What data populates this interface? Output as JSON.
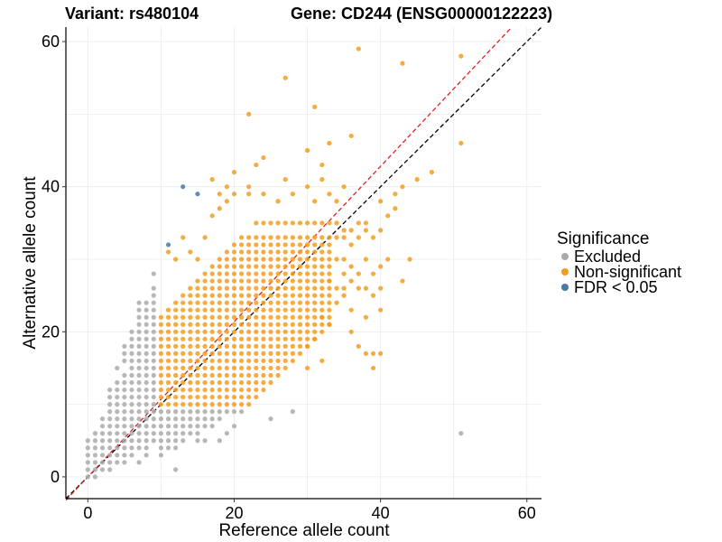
{
  "chart_data": {
    "type": "scatter",
    "title_left": "Variant: rs480104",
    "title_right": "Gene: CD244 (ENSG00000122223)",
    "xlabel": "Reference allele count",
    "ylabel": "Alternative allele count",
    "xlim": [
      -3,
      62
    ],
    "ylim": [
      -3,
      62
    ],
    "x_ticks": [
      0,
      20,
      40,
      60
    ],
    "y_ticks": [
      0,
      20,
      40,
      60
    ],
    "grid": true,
    "legend_position": "right",
    "legend": {
      "title": "Significance",
      "entries": [
        {
          "label": "Excluded",
          "color": "#aaaaaa"
        },
        {
          "label": "Non-significant",
          "color": "#f39c1e"
        },
        {
          "label": "FDR < 0.05",
          "color": "#4878a8"
        }
      ]
    },
    "reference_lines": [
      {
        "name": "identity",
        "slope": 1.0,
        "intercept": 0,
        "color": "#000000",
        "dash": true
      },
      {
        "name": "fitted",
        "slope": 1.07,
        "intercept": 0,
        "color": "#e02020",
        "dash": true
      }
    ],
    "series": [
      {
        "name": "Excluded",
        "color": "#aaaaaa",
        "points": [
          [
            0,
            0
          ],
          [
            0,
            1
          ],
          [
            0,
            2
          ],
          [
            0,
            3
          ],
          [
            0,
            4
          ],
          [
            0,
            5
          ],
          [
            1,
            0
          ],
          [
            1,
            1
          ],
          [
            1,
            2
          ],
          [
            1,
            3
          ],
          [
            1,
            4
          ],
          [
            1,
            5
          ],
          [
            1,
            6
          ],
          [
            2,
            1
          ],
          [
            2,
            2
          ],
          [
            2,
            3
          ],
          [
            2,
            4
          ],
          [
            2,
            5
          ],
          [
            2,
            6
          ],
          [
            2,
            7
          ],
          [
            2,
            8
          ],
          [
            3,
            1
          ],
          [
            3,
            2
          ],
          [
            3,
            3
          ],
          [
            3,
            4
          ],
          [
            3,
            5
          ],
          [
            3,
            6
          ],
          [
            3,
            7
          ],
          [
            3,
            8
          ],
          [
            3,
            9
          ],
          [
            3,
            10
          ],
          [
            3,
            11
          ],
          [
            3,
            12
          ],
          [
            4,
            2
          ],
          [
            4,
            3
          ],
          [
            4,
            4
          ],
          [
            4,
            5
          ],
          [
            4,
            6
          ],
          [
            4,
            7
          ],
          [
            4,
            8
          ],
          [
            4,
            9
          ],
          [
            4,
            10
          ],
          [
            4,
            11
          ],
          [
            4,
            12
          ],
          [
            4,
            13
          ],
          [
            4,
            15
          ],
          [
            5,
            2
          ],
          [
            5,
            3
          ],
          [
            5,
            4
          ],
          [
            5,
            5
          ],
          [
            5,
            6
          ],
          [
            5,
            7
          ],
          [
            5,
            8
          ],
          [
            5,
            9
          ],
          [
            5,
            10
          ],
          [
            5,
            11
          ],
          [
            5,
            12
          ],
          [
            5,
            13
          ],
          [
            5,
            14
          ],
          [
            5,
            16
          ],
          [
            5,
            17
          ],
          [
            5,
            18
          ],
          [
            6,
            3
          ],
          [
            6,
            4
          ],
          [
            6,
            5
          ],
          [
            6,
            6
          ],
          [
            6,
            7
          ],
          [
            6,
            8
          ],
          [
            6,
            9
          ],
          [
            6,
            10
          ],
          [
            6,
            11
          ],
          [
            6,
            12
          ],
          [
            6,
            13
          ],
          [
            6,
            14
          ],
          [
            6,
            15
          ],
          [
            6,
            16
          ],
          [
            6,
            17
          ],
          [
            6,
            18
          ],
          [
            6,
            19
          ],
          [
            6,
            20
          ],
          [
            7,
            2
          ],
          [
            7,
            4
          ],
          [
            7,
            5
          ],
          [
            7,
            6
          ],
          [
            7,
            7
          ],
          [
            7,
            8
          ],
          [
            7,
            9
          ],
          [
            7,
            10
          ],
          [
            7,
            11
          ],
          [
            7,
            12
          ],
          [
            7,
            13
          ],
          [
            7,
            14
          ],
          [
            7,
            15
          ],
          [
            7,
            16
          ],
          [
            7,
            17
          ],
          [
            7,
            18
          ],
          [
            7,
            19
          ],
          [
            7,
            20
          ],
          [
            7,
            21
          ],
          [
            7,
            22
          ],
          [
            7,
            23
          ],
          [
            7,
            24
          ],
          [
            8,
            3
          ],
          [
            8,
            4
          ],
          [
            8,
            5
          ],
          [
            8,
            6
          ],
          [
            8,
            7
          ],
          [
            8,
            8
          ],
          [
            8,
            9
          ],
          [
            8,
            10
          ],
          [
            8,
            11
          ],
          [
            8,
            12
          ],
          [
            8,
            13
          ],
          [
            8,
            14
          ],
          [
            8,
            15
          ],
          [
            8,
            16
          ],
          [
            8,
            17
          ],
          [
            8,
            18
          ],
          [
            8,
            19
          ],
          [
            8,
            20
          ],
          [
            8,
            21
          ],
          [
            8,
            22
          ],
          [
            8,
            23
          ],
          [
            8,
            24
          ],
          [
            9,
            5
          ],
          [
            9,
            6
          ],
          [
            9,
            7
          ],
          [
            9,
            8
          ],
          [
            9,
            9
          ],
          [
            9,
            10
          ],
          [
            9,
            11
          ],
          [
            9,
            12
          ],
          [
            9,
            13
          ],
          [
            9,
            14
          ],
          [
            9,
            15
          ],
          [
            9,
            16
          ],
          [
            9,
            17
          ],
          [
            9,
            18
          ],
          [
            9,
            19
          ],
          [
            9,
            20
          ],
          [
            9,
            21
          ],
          [
            9,
            22
          ],
          [
            9,
            23
          ],
          [
            9,
            24
          ],
          [
            9,
            25
          ],
          [
            9,
            26
          ],
          [
            9,
            28
          ],
          [
            10,
            3
          ],
          [
            10,
            4
          ],
          [
            10,
            5
          ],
          [
            10,
            6
          ],
          [
            10,
            7
          ],
          [
            10,
            8
          ],
          [
            10,
            9
          ],
          [
            11,
            4
          ],
          [
            11,
            5
          ],
          [
            11,
            6
          ],
          [
            11,
            7
          ],
          [
            11,
            8
          ],
          [
            11,
            9
          ],
          [
            12,
            1
          ],
          [
            12,
            4
          ],
          [
            12,
            5
          ],
          [
            12,
            6
          ],
          [
            12,
            7
          ],
          [
            12,
            8
          ],
          [
            12,
            9
          ],
          [
            13,
            5
          ],
          [
            13,
            6
          ],
          [
            13,
            7
          ],
          [
            13,
            8
          ],
          [
            13,
            9
          ],
          [
            14,
            6
          ],
          [
            14,
            7
          ],
          [
            14,
            8
          ],
          [
            14,
            9
          ],
          [
            15,
            5
          ],
          [
            15,
            6
          ],
          [
            15,
            7
          ],
          [
            15,
            8
          ],
          [
            15,
            9
          ],
          [
            16,
            5
          ],
          [
            16,
            7
          ],
          [
            16,
            8
          ],
          [
            16,
            9
          ],
          [
            17,
            7
          ],
          [
            17,
            8
          ],
          [
            17,
            9
          ],
          [
            18,
            5
          ],
          [
            18,
            8
          ],
          [
            18,
            9
          ],
          [
            19,
            6
          ],
          [
            19,
            9
          ],
          [
            20,
            7
          ],
          [
            20,
            9
          ],
          [
            21,
            9
          ],
          [
            25,
            8
          ],
          [
            28,
            9
          ],
          [
            51,
            6
          ]
        ]
      },
      {
        "name": "Non-significant",
        "color": "#f39c1e",
        "grid": {
          "x_range": [
            10,
            33
          ],
          "y_base": 10,
          "y_top_offset": 12,
          "y_top_max": 33,
          "y_bottom_offset": -12
        },
        "points": [
          [
            23,
            35
          ],
          [
            24,
            35
          ],
          [
            25,
            35
          ],
          [
            26,
            35
          ],
          [
            27,
            35
          ],
          [
            28,
            35
          ],
          [
            29,
            35
          ],
          [
            30,
            35
          ],
          [
            31,
            35
          ],
          [
            32,
            35
          ],
          [
            33,
            35
          ],
          [
            34,
            33
          ],
          [
            34,
            35
          ],
          [
            35,
            33
          ],
          [
            35,
            34
          ],
          [
            36,
            32
          ],
          [
            36,
            34
          ],
          [
            37,
            33
          ],
          [
            37,
            35
          ],
          [
            38,
            34
          ],
          [
            38,
            35
          ],
          [
            39,
            33
          ],
          [
            40,
            34
          ],
          [
            41,
            36
          ],
          [
            42,
            37
          ],
          [
            40,
            38
          ],
          [
            42,
            39
          ],
          [
            43,
            40
          ],
          [
            34,
            30
          ],
          [
            35,
            28
          ],
          [
            35,
            30
          ],
          [
            36,
            27
          ],
          [
            36,
            29
          ],
          [
            37,
            26
          ],
          [
            37,
            28
          ],
          [
            38,
            26
          ],
          [
            38,
            30
          ],
          [
            39,
            28
          ],
          [
            40,
            26
          ],
          [
            40,
            29
          ],
          [
            41,
            30
          ],
          [
            43,
            27
          ],
          [
            44,
            30
          ],
          [
            34,
            24
          ],
          [
            35,
            25
          ],
          [
            36,
            23
          ],
          [
            38,
            22
          ],
          [
            39,
            25
          ],
          [
            40,
            23
          ],
          [
            36,
            20
          ],
          [
            37,
            18
          ],
          [
            39,
            17
          ],
          [
            32,
            22
          ],
          [
            33,
            21
          ],
          [
            31,
            19
          ],
          [
            30,
            18
          ],
          [
            32,
            16
          ],
          [
            30,
            15
          ],
          [
            17,
            36
          ],
          [
            18,
            37
          ],
          [
            19,
            38
          ],
          [
            19,
            40
          ],
          [
            20,
            42
          ],
          [
            22,
            40
          ],
          [
            23,
            43
          ],
          [
            24,
            39
          ],
          [
            26,
            38
          ],
          [
            27,
            41
          ],
          [
            28,
            39
          ],
          [
            30,
            40
          ],
          [
            31,
            38
          ],
          [
            32,
            41
          ],
          [
            33,
            39
          ],
          [
            35,
            40
          ],
          [
            34,
            38
          ],
          [
            18,
            39
          ],
          [
            17,
            41
          ],
          [
            20,
            39
          ],
          [
            22,
            39
          ],
          [
            22,
            50
          ],
          [
            24,
            44
          ],
          [
            27,
            55
          ],
          [
            30,
            45
          ],
          [
            31,
            51
          ],
          [
            32,
            43
          ],
          [
            33,
            46
          ],
          [
            36,
            47
          ],
          [
            37,
            59
          ],
          [
            43,
            57
          ],
          [
            51,
            58
          ],
          [
            51,
            46
          ],
          [
            45,
            41
          ],
          [
            47,
            42
          ],
          [
            11,
            31
          ],
          [
            12,
            30
          ],
          [
            13,
            33
          ],
          [
            14,
            31
          ],
          [
            15,
            30
          ],
          [
            16,
            33
          ],
          [
            34,
            26
          ],
          [
            35,
            26
          ],
          [
            33,
            27
          ],
          [
            38,
            17
          ],
          [
            40,
            17
          ],
          [
            39,
            15
          ]
        ]
      },
      {
        "name": "FDR < 0.05",
        "color": "#4878a8",
        "points": [
          [
            13,
            40
          ],
          [
            15,
            39
          ],
          [
            11,
            32
          ]
        ]
      }
    ]
  }
}
